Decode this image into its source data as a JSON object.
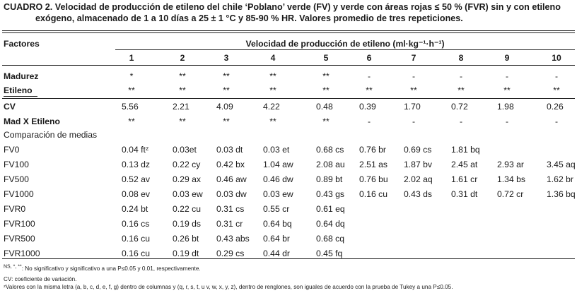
{
  "caption": {
    "line1": "CUADRO 2. Velocidad de producción de etileno del chile ‘Poblano’ verde (FV) y verde con áreas rojas ≤ 50 % (FVR) sin y con etileno",
    "line2": "exógeno, almacenado de 1 a 10 días a 25 ± 1 °C y 85-90 % HR. Valores promedio de tres repeticiones."
  },
  "table": {
    "factores_label": "Factores",
    "group_header": "Velocidad de producción de etileno (ml·kg⁻¹·h⁻¹)",
    "days": [
      "1",
      "2",
      "3",
      "4",
      "5",
      "6",
      "7",
      "8",
      "9",
      "10"
    ],
    "rows": [
      {
        "label": "Madurez",
        "bold": true,
        "cells": [
          "*",
          "**",
          "**",
          "**",
          "**",
          "-",
          "-",
          "-",
          "-",
          "-"
        ]
      },
      {
        "label": "Etileno",
        "bold": true,
        "cells": [
          "**",
          "**",
          "**",
          "**",
          "**",
          "**",
          "**",
          "**",
          "**",
          "**"
        ]
      },
      {
        "label": "CV",
        "bold": true,
        "cells": [
          "5.56",
          "2.21",
          "4.09",
          "4.22",
          "0.48",
          "0.39",
          "1.70",
          "0.72",
          "1.98",
          "0.26"
        ]
      },
      {
        "label": "Mad X  Etileno",
        "bold": true,
        "cells": [
          "**",
          "**",
          "**",
          "**",
          "**",
          "-",
          "-",
          "-",
          "-",
          "-"
        ]
      },
      {
        "label": "Comparación de medias",
        "bold": false,
        "cells": [
          "",
          "",
          "",
          "",
          "",
          "",
          "",
          "",
          "",
          ""
        ]
      },
      {
        "label": "FV0",
        "bold": false,
        "cells": [
          "0.04 ftᶻ",
          "0.03et",
          "0.03 dt",
          "0.03 et",
          "0.68 cs",
          "0.76 br",
          "0.69 cs",
          "1.81 bq",
          "",
          ""
        ]
      },
      {
        "label": "FV100",
        "bold": false,
        "cells": [
          "0.13 dz",
          "0.22 cy",
          "0.42 bx",
          "1.04 aw",
          "2.08 au",
          "2.51 as",
          "1.87 bv",
          "2.45 at",
          "2.93 ar",
          "3.45 aq"
        ]
      },
      {
        "label": "FV500",
        "bold": false,
        "cells": [
          "0.52 av",
          "0.29 ax",
          "0.46 aw",
          "0.46 dw",
          "0.89 bt",
          "0.76 bu",
          "2.02 aq",
          "1.61 cr",
          "1.34 bs",
          "1.62 br"
        ]
      },
      {
        "label": "FV1000",
        "bold": false,
        "cells": [
          "0.08 ev",
          "0.03 ew",
          "0.03 dw",
          "0.03 ew",
          "0.43 gs",
          "0.16 cu",
          "0.43 ds",
          "0.31 dt",
          "0.72 cr",
          "1.36 bq"
        ]
      },
      {
        "label": "FVR0",
        "bold": false,
        "cells": [
          "0.24 bt",
          "0.22 cu",
          "0.31 cs",
          "0.55 cr",
          "0.61 eq",
          "",
          "",
          "",
          "",
          ""
        ]
      },
      {
        "label": "FVR100",
        "bold": false,
        "cells": [
          "0.16 cs",
          "0.19 ds",
          "0.31 cr",
          "0.64 bq",
          "0.64 dq",
          "",
          "",
          "",
          "",
          ""
        ]
      },
      {
        "label": "FVR500",
        "bold": false,
        "cells": [
          "0.16 cu",
          "0.26 bt",
          "0.43 abs",
          "0.64 br",
          "0.68 cq",
          "",
          "",
          "",
          "",
          ""
        ]
      },
      {
        "label": "FVR1000",
        "bold": false,
        "cells": [
          "0.16 cu",
          "0.19 dt",
          "0.29 cs",
          "0.44 dr",
          "0.45 fq",
          "",
          "",
          "",
          "",
          ""
        ]
      }
    ]
  },
  "footnotes": {
    "sig_mark": "NS, *, **",
    "sig": ": No significativo y significativo a una P≤0.05 y 0.01, respectivamente.",
    "cv": "CV: coeficiente de variación.",
    "tukey": "ᶻValores con la misma letra (a, b, c, d, e, f, g) dentro de columnas y (q, r, s, t, u v, w, x, y, z), dentro de renglones, son iguales de acuerdo con la prueba de Tukey a una P≤0.05."
  }
}
